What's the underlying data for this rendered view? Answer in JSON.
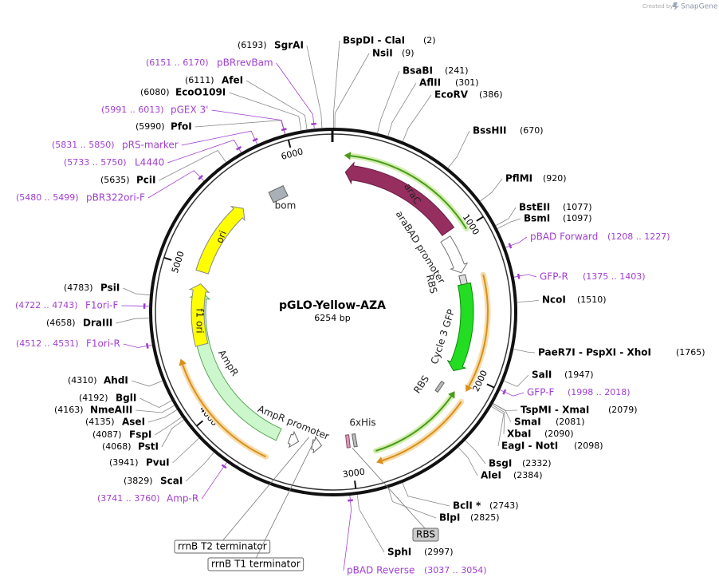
{
  "header": {
    "created_by": "Created by",
    "brand": "SnapGene"
  },
  "map": {
    "name": "pGLO-Yellow-AZA",
    "length": "6254 bp"
  },
  "ticks": [
    1000,
    2000,
    3000,
    4000,
    5000,
    6000
  ],
  "enzymes": [
    {
      "name": "SgrAI",
      "position": "(6193)"
    },
    {
      "name": "AfeI",
      "position": "(6111)"
    },
    {
      "name": "EcoO109I",
      "position": "(6080)"
    },
    {
      "name": "PfoI",
      "position": "(5990)"
    },
    {
      "name": "PciI",
      "position": "(5635)"
    },
    {
      "name": "PsiI",
      "position": "(4783)"
    },
    {
      "name": "DraIII",
      "position": "(4658)"
    },
    {
      "name": "AhdI",
      "position": "(4310)"
    },
    {
      "name": "BglI",
      "position": "(4192)"
    },
    {
      "name": "NmeAIII",
      "position": "(4163)"
    },
    {
      "name": "AseI",
      "position": "(4135)"
    },
    {
      "name": "FspI",
      "position": "(4087)"
    },
    {
      "name": "PstI",
      "position": "(4068)"
    },
    {
      "name": "PvuI",
      "position": "(3941)"
    },
    {
      "name": "ScaI",
      "position": "(3829)"
    },
    {
      "name": "BspDI - ClaI",
      "position": "(2)"
    },
    {
      "name": "NsiI",
      "position": "(9)"
    },
    {
      "name": "BsaBI",
      "position": "(241)"
    },
    {
      "name": "AflII",
      "position": "(301)"
    },
    {
      "name": "EcoRV",
      "position": "(386)"
    },
    {
      "name": "BssHII",
      "position": "(670)"
    },
    {
      "name": "PflMI",
      "position": "(920)"
    },
    {
      "name": "BstEII",
      "position": "(1077)"
    },
    {
      "name": "BsmI",
      "position": "(1097)"
    },
    {
      "name": "NcoI",
      "position": "(1510)"
    },
    {
      "name": "PaeR7I - PspXI - XhoI",
      "position": "(1765)"
    },
    {
      "name": "SalI",
      "position": "(1947)"
    },
    {
      "name": "TspMI - XmaI",
      "position": "(2079)"
    },
    {
      "name": "SmaI",
      "position": "(2081)"
    },
    {
      "name": "XbaI",
      "position": "(2090)"
    },
    {
      "name": "EagI - NotI",
      "position": "(2098)"
    },
    {
      "name": "BsgI",
      "position": "(2332)"
    },
    {
      "name": "AleI",
      "position": "(2384)"
    },
    {
      "name": "BclI *",
      "position": "(2743)"
    },
    {
      "name": "BlpI",
      "position": "(2825)"
    },
    {
      "name": "SphI",
      "position": "(2997)"
    }
  ],
  "primers": [
    {
      "name": "pBRrevBam",
      "range": "(6151 .. 6170)"
    },
    {
      "name": "pGEX 3'",
      "range": "(5991 .. 6013)"
    },
    {
      "name": "pRS-marker",
      "range": "(5831 .. 5850)"
    },
    {
      "name": "L4440",
      "range": "(5733 .. 5750)"
    },
    {
      "name": "pBR322ori-F",
      "range": "(5480 .. 5499)"
    },
    {
      "name": "F1ori-F",
      "range": "(4722 .. 4743)"
    },
    {
      "name": "F1ori-R",
      "range": "(4512 .. 4531)"
    },
    {
      "name": "Amp-R",
      "range": "(3741 .. 3760)"
    },
    {
      "name": "pBAD Forward",
      "range": "(1208 .. 1227)"
    },
    {
      "name": "GFP-R",
      "range": "(1375 .. 1403)"
    },
    {
      "name": "GFP-F",
      "range": "(1998 .. 2018)"
    },
    {
      "name": "pBAD Reverse",
      "range": "(3037 .. 3054)"
    }
  ],
  "features": [
    "araC",
    "araBAD promoter",
    "RBS",
    "Cycle 3 GFP",
    "RBS",
    "6xHis",
    "AmpR",
    "AmpR promoter",
    "f1 ori",
    "ori",
    "bom"
  ],
  "callouts": [
    "rrnB T2 terminator",
    "rrnB T1 terminator",
    "RBS"
  ]
}
